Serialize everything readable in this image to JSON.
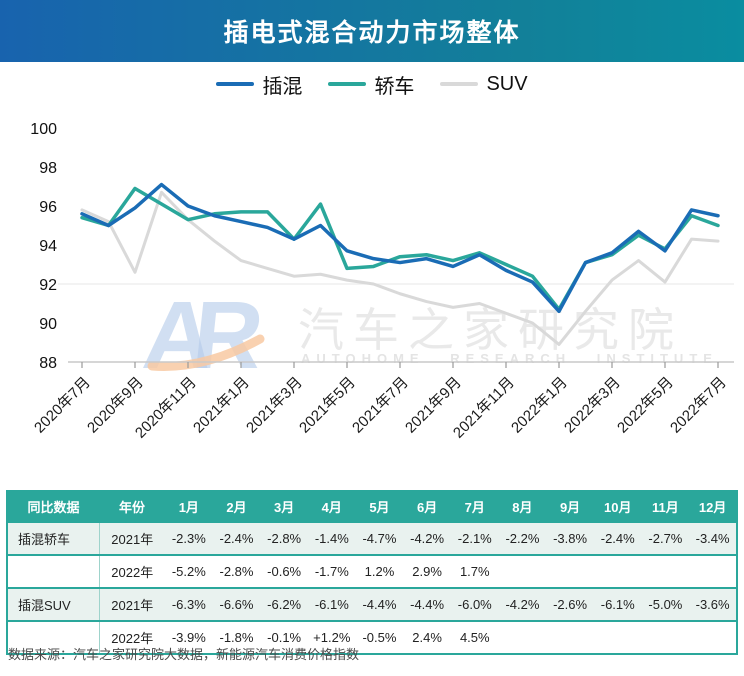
{
  "header": {
    "title": "插电式混合动力市场整体"
  },
  "legend": {
    "items": [
      {
        "label": "插混",
        "color": "#1a6cb5"
      },
      {
        "label": "轿车",
        "color": "#2aa79b"
      },
      {
        "label": "SUV",
        "color": "#d9d9d9"
      }
    ]
  },
  "chart_data": {
    "type": "line",
    "title": "插电式混合动力市场整体",
    "x": [
      "2020年7月",
      "2020年8月",
      "2020年9月",
      "2020年10月",
      "2020年11月",
      "2020年12月",
      "2021年1月",
      "2021年2月",
      "2021年3月",
      "2021年4月",
      "2021年5月",
      "2021年6月",
      "2021年7月",
      "2021年8月",
      "2021年9月",
      "2021年10月",
      "2021年11月",
      "2021年12月",
      "2022年1月",
      "2022年2月",
      "2022年3月",
      "2022年4月",
      "2022年5月",
      "2022年6月",
      "2022年7月"
    ],
    "x_tick_step": 2,
    "ylim": [
      88,
      100
    ],
    "yticks": [
      88,
      90,
      92,
      94,
      96,
      98,
      100
    ],
    "gridlines": [
      92
    ],
    "legend_position": "top",
    "series": [
      {
        "name": "SUV",
        "color": "#d9d9d9",
        "width": 3,
        "values": [
          95.8,
          95.2,
          92.6,
          96.7,
          95.3,
          94.2,
          93.2,
          92.8,
          92.4,
          92.5,
          92.2,
          92.0,
          91.5,
          91.1,
          90.8,
          91.0,
          90.5,
          90.0,
          88.9,
          90.6,
          92.2,
          93.2,
          92.1,
          94.3,
          94.2
        ]
      },
      {
        "name": "轿车",
        "color": "#2aa79b",
        "width": 3.5,
        "values": [
          95.4,
          95.0,
          96.9,
          96.1,
          95.3,
          95.6,
          95.7,
          95.7,
          94.3,
          96.1,
          92.8,
          92.9,
          93.4,
          93.5,
          93.2,
          93.6,
          93.0,
          92.4,
          90.7,
          93.1,
          93.5,
          94.5,
          93.8,
          95.5,
          95.0
        ]
      },
      {
        "name": "插混",
        "color": "#1a6cb5",
        "width": 3.5,
        "values": [
          95.6,
          95.0,
          95.9,
          97.1,
          96.0,
          95.5,
          95.2,
          94.9,
          94.3,
          95.0,
          93.7,
          93.3,
          93.1,
          93.3,
          92.9,
          93.5,
          92.7,
          92.1,
          90.6,
          93.1,
          93.6,
          94.7,
          93.7,
          95.8,
          95.5
        ]
      }
    ]
  },
  "watermark": {
    "logo": "AR",
    "title_cn": "汽车之家研究院",
    "title_en": "AUTOHOME RESEARCH INSTITUTE"
  },
  "table": {
    "col_headers": [
      "同比数据",
      "年份",
      "1月",
      "2月",
      "3月",
      "4月",
      "5月",
      "6月",
      "7月",
      "8月",
      "9月",
      "10月",
      "11月",
      "12月"
    ],
    "rows": [
      {
        "group": "插混轿车",
        "year": "2021年",
        "values": [
          "-2.3%",
          "-2.4%",
          "-2.8%",
          "-1.4%",
          "-4.7%",
          "-4.2%",
          "-2.1%",
          "-2.2%",
          "-3.8%",
          "-2.4%",
          "-2.7%",
          "-3.4%"
        ]
      },
      {
        "group": "",
        "year": "2022年",
        "values": [
          "-5.2%",
          "-2.8%",
          "-0.6%",
          "-1.7%",
          "1.2%",
          "2.9%",
          "1.7%"
        ]
      },
      {
        "group": "插混SUV",
        "year": "2021年",
        "values": [
          "-6.3%",
          "-6.6%",
          "-6.2%",
          "-6.1%",
          "-4.4%",
          "-4.4%",
          "-6.0%",
          "-4.2%",
          "-2.6%",
          "-6.1%",
          "-5.0%",
          "-3.6%"
        ]
      },
      {
        "group": "",
        "year": "2022年",
        "values": [
          "-3.9%",
          "-1.8%",
          "-0.1%",
          "+1.2%",
          "-0.5%",
          "2.4%",
          "4.5%"
        ]
      }
    ]
  },
  "footer": {
    "source": "数据来源：汽车之家研究院大数据，新能源汽车消费价格指数"
  }
}
